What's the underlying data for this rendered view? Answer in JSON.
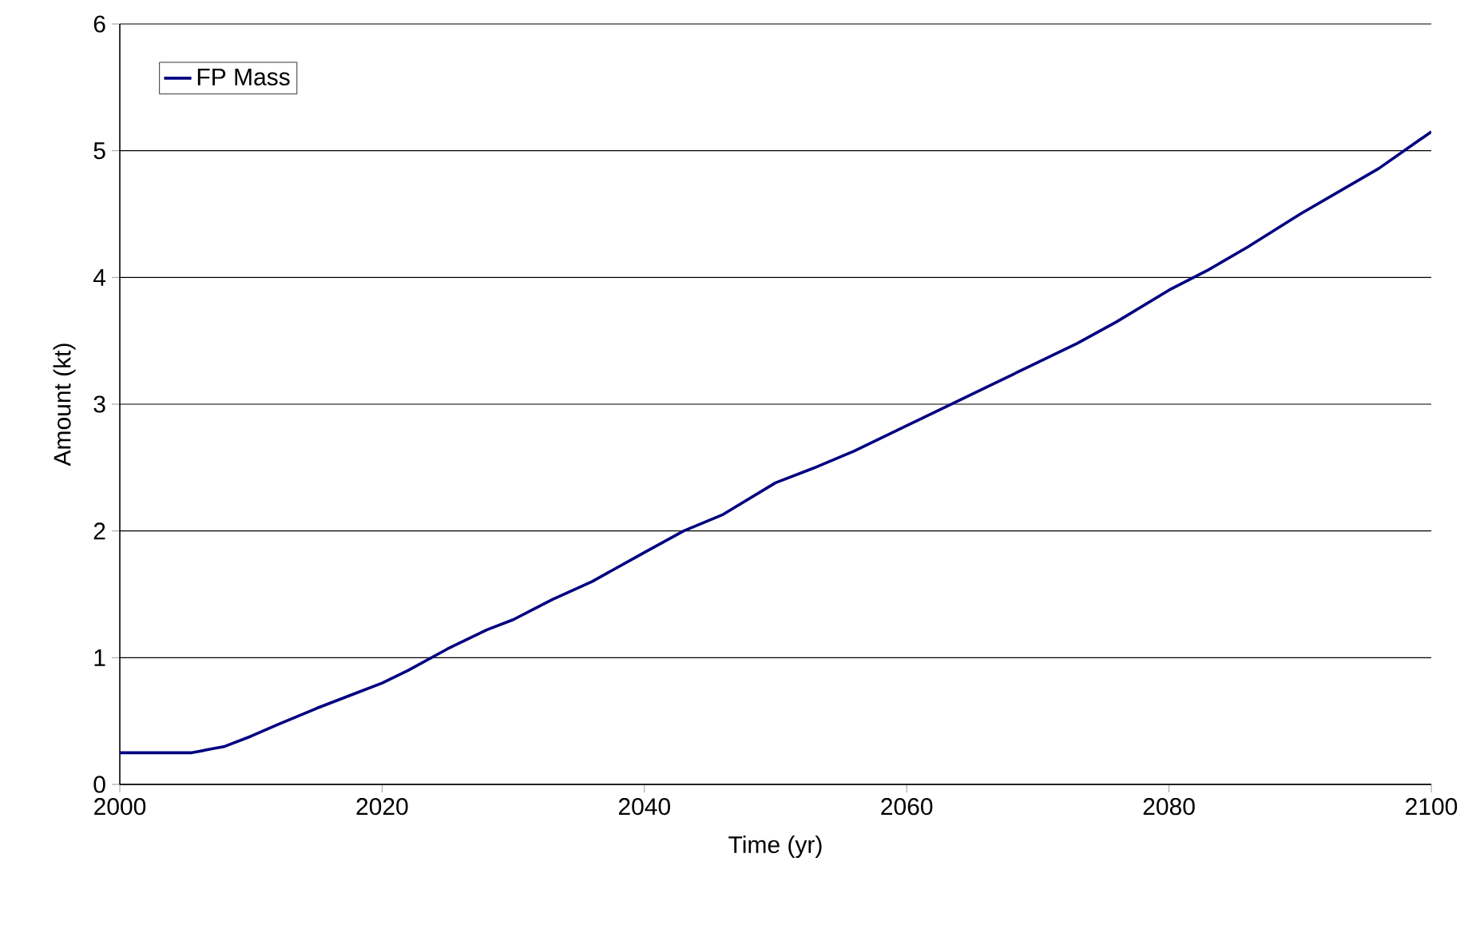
{
  "chart_data": {
    "type": "line",
    "xlabel": "Time (yr)",
    "ylabel": "Amount (kt)",
    "xlim": [
      2000,
      2100
    ],
    "ylim": [
      0,
      6
    ],
    "xticks": [
      2000,
      2020,
      2040,
      2060,
      2080,
      2100
    ],
    "yticks": [
      0,
      1,
      2,
      3,
      4,
      5,
      6
    ],
    "grid": "y",
    "legend": "top left",
    "marker": "none",
    "line_style": "solid",
    "series": [
      {
        "name": "FP Mass",
        "color": "#000080",
        "x": [
          2000,
          2005.5,
          2007,
          2008,
          2010,
          2012,
          2015,
          2018,
          2020,
          2022,
          2025,
          2028,
          2030,
          2033,
          2036,
          2040,
          2043,
          2046,
          2050,
          2053,
          2056,
          2060,
          2063,
          2066,
          2070,
          2073,
          2076,
          2080,
          2083,
          2086,
          2090,
          2093,
          2096,
          2100
        ],
        "values": [
          0.25,
          0.25,
          0.28,
          0.3,
          0.38,
          0.47,
          0.6,
          0.72,
          0.8,
          0.9,
          1.07,
          1.22,
          1.3,
          1.46,
          1.6,
          1.83,
          2.0,
          2.13,
          2.38,
          2.5,
          2.63,
          2.83,
          2.98,
          3.13,
          3.33,
          3.48,
          3.65,
          3.9,
          4.06,
          4.24,
          4.5,
          4.68,
          4.86,
          5.15
        ]
      }
    ]
  }
}
